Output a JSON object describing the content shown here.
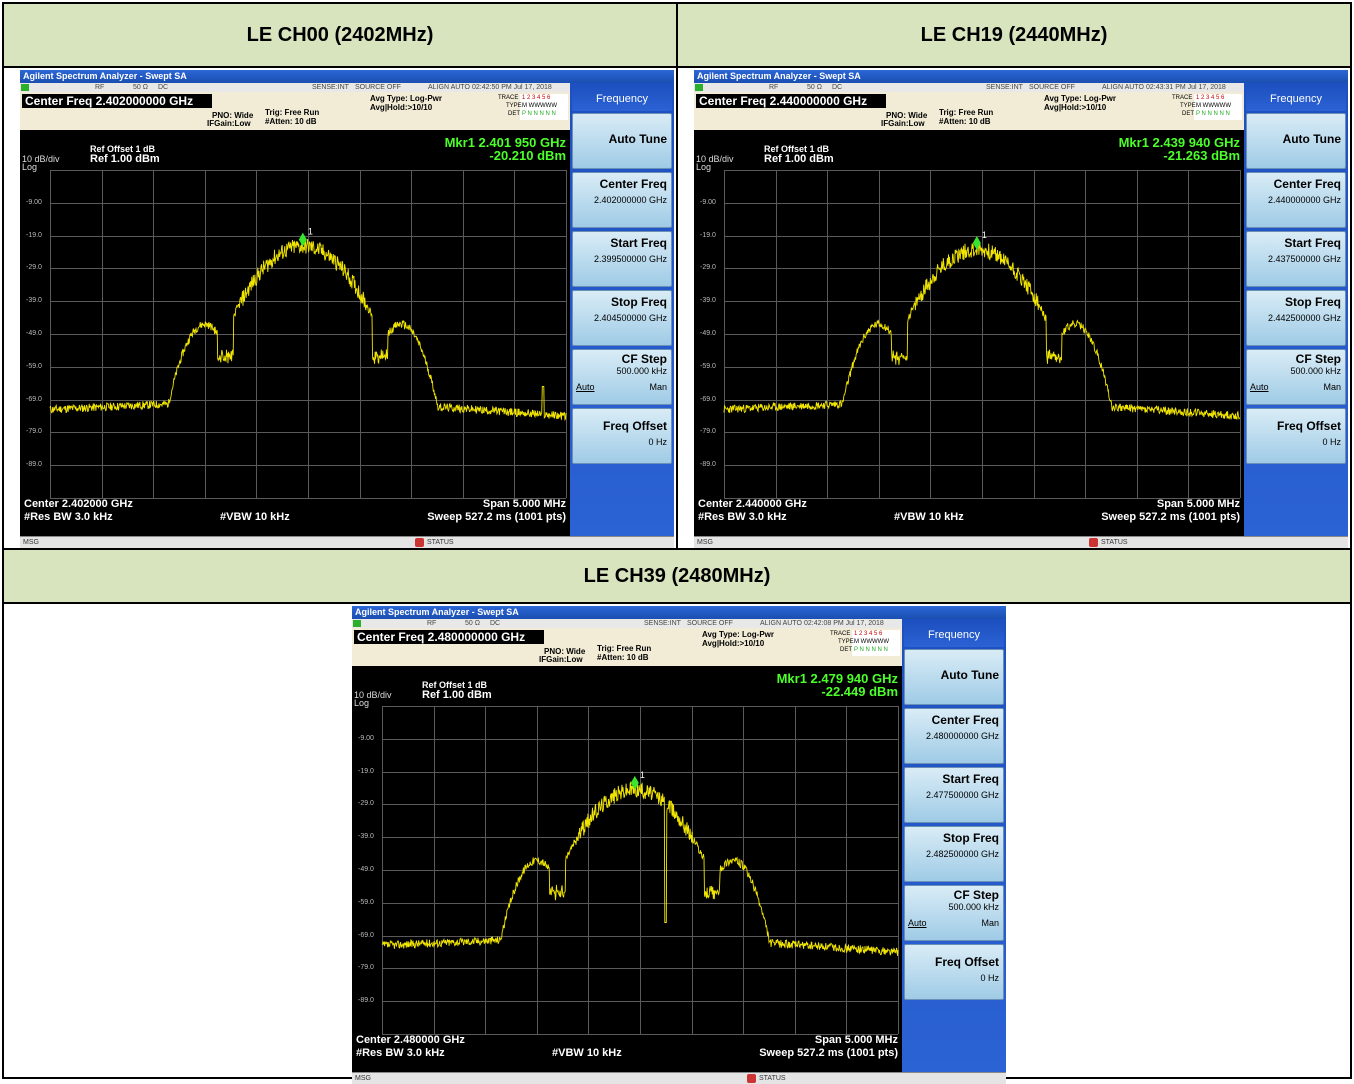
{
  "headers": {
    "ch00": "LE CH00 (2402MHz)",
    "ch19": "LE CH19 (2440MHz)",
    "ch39": "LE CH39 (2480MHz)"
  },
  "analyzer": {
    "title": "Agilent Spectrum Analyzer - Swept SA",
    "rf_label": "RF",
    "impedance": "50 Ω",
    "coupling": "DC",
    "sense": "SENSE:INT",
    "source": "SOURCE OFF",
    "align": "ALIGN AUTO",
    "pno": "PNO: Wide",
    "ifgain": "IFGain:Low",
    "trig": "Trig: Free Run",
    "atten": "#Atten: 10 dB",
    "avg_type": "Avg Type: Log-Pwr",
    "avg_hold": "Avg|Hold:>10/10",
    "trace_label": "TRACE",
    "trace_nums": "1 2 3 4 5 6",
    "type_label": "TYPE",
    "type_val": "M WWWWW",
    "det_label": "DET",
    "det_val": "P N N N N N",
    "ref_offset": "Ref Offset 1 dB",
    "scale": "10 dB/div",
    "ref_level": "Ref 1.00 dBm",
    "log": "Log",
    "res_bw": "#Res BW 3.0 kHz",
    "vbw": "#VBW 10 kHz",
    "span": "Span 5.000 MHz",
    "sweep": "Sweep  527.2 ms (1001 pts)",
    "msg": "MSG",
    "status": "STATUS",
    "y_labels": [
      "-9.00",
      "-19.0",
      "-29.0",
      "-39.0",
      "-49.0",
      "-59.0",
      "-69.0",
      "-79.0",
      "-89.0"
    ],
    "marker_num": "1",
    "softkeys": {
      "menu_title": "Frequency",
      "auto_tune": "Auto Tune",
      "center_freq": "Center Freq",
      "start_freq": "Start Freq",
      "stop_freq": "Stop Freq",
      "cf_step": "CF Step",
      "cf_step_val": "500.000 kHz",
      "auto": "Auto",
      "man": "Man",
      "freq_offset": "Freq Offset",
      "freq_offset_val": "0 Hz"
    }
  },
  "screens": {
    "ch00": {
      "time": "02:42:50 PM Jul 17, 2018",
      "center_freq_box": "Center Freq 2.402000000 GHz",
      "marker_freq": "Mkr1 2.401 950 GHz",
      "marker_level": "-20.210 dBm",
      "center": "Center 2.402000 GHz",
      "center_freq_val": "2.402000000 GHz",
      "start_freq_val": "2.399500000 GHz",
      "stop_freq_val": "2.404500000 GHz",
      "marker_value": {
        "freq_ghz": 2.40195,
        "level_dbm": -20.21
      }
    },
    "ch19": {
      "time": "02:43:31 PM Jul 17, 2018",
      "center_freq_box": "Center Freq 2.440000000 GHz",
      "marker_freq": "Mkr1 2.439 940 GHz",
      "marker_level": "-21.263 dBm",
      "center": "Center 2.440000 GHz",
      "center_freq_val": "2.440000000 GHz",
      "start_freq_val": "2.437500000 GHz",
      "stop_freq_val": "2.442500000 GHz",
      "marker_value": {
        "freq_ghz": 2.43994,
        "level_dbm": -21.263
      }
    },
    "ch39": {
      "time": "02:42:08 PM Jul 17, 2018",
      "center_freq_box": "Center Freq 2.480000000 GHz",
      "marker_freq": "Mkr1 2.479 940 GHz",
      "marker_level": "-22.449 dBm",
      "center": "Center 2.480000 GHz",
      "center_freq_val": "2.480000000 GHz",
      "start_freq_val": "2.477500000 GHz",
      "stop_freq_val": "2.482500000 GHz",
      "marker_value": {
        "freq_ghz": 2.47994,
        "level_dbm": -22.449
      }
    }
  },
  "colors": {
    "header_bg": "#d7e4bd",
    "trace": "#f2e600",
    "marker": "#39e62e",
    "softkey_bg": "#2b62d4"
  }
}
